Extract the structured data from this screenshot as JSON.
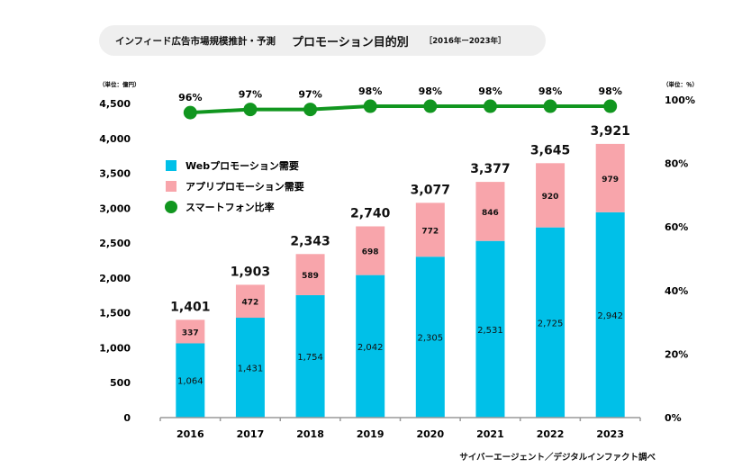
{
  "header": {
    "subtitle": "インフィード広告市場規模推計・予測",
    "title": "プロモーション目的別",
    "period": "［2016年ー2023年］"
  },
  "source": "サイバーエージェント／デジタルインファクト調べ",
  "chart_data": {
    "type": "bar",
    "stacked": true,
    "categories": [
      "2016",
      "2017",
      "2018",
      "2019",
      "2020",
      "2021",
      "2022",
      "2023"
    ],
    "series": [
      {
        "name": "Webプロモーション需要",
        "values": [
          1064,
          1431,
          1754,
          2042,
          2305,
          2531,
          2725,
          2942
        ],
        "color": "#00c0e8"
      },
      {
        "name": "アプリプロモーション需要",
        "values": [
          337,
          472,
          589,
          698,
          772,
          846,
          920,
          979
        ],
        "color": "#f8a5ab"
      }
    ],
    "totals": [
      1401,
      1903,
      2343,
      2740,
      3077,
      3377,
      3645,
      3921
    ],
    "line_series": {
      "name": "スマートフォン比率",
      "values": [
        96,
        97,
        97,
        98,
        98,
        98,
        98,
        98
      ],
      "color": "#11961f",
      "labels": [
        "96%",
        "97%",
        "97%",
        "98%",
        "98%",
        "98%",
        "98%",
        "98%"
      ]
    },
    "ylabel_left": "（単位：億円）",
    "ylabel_right": "（単位：％）",
    "ylim": [
      0,
      4500
    ],
    "y2lim": [
      0,
      100
    ],
    "y_ticks": [
      0,
      500,
      1000,
      1500,
      2000,
      2500,
      3000,
      3500,
      4000,
      4500
    ],
    "y_tick_labels": [
      "0",
      "500",
      "1,000",
      "1,500",
      "2,000",
      "2,500",
      "3,000",
      "3,500",
      "4,000",
      "4,500"
    ],
    "y2_ticks": [
      0,
      20,
      40,
      60,
      80,
      100
    ],
    "y2_tick_labels": [
      "0%",
      "20%",
      "40%",
      "60%",
      "80%",
      "100%"
    ],
    "grid": false,
    "legend_position": "top-left"
  }
}
